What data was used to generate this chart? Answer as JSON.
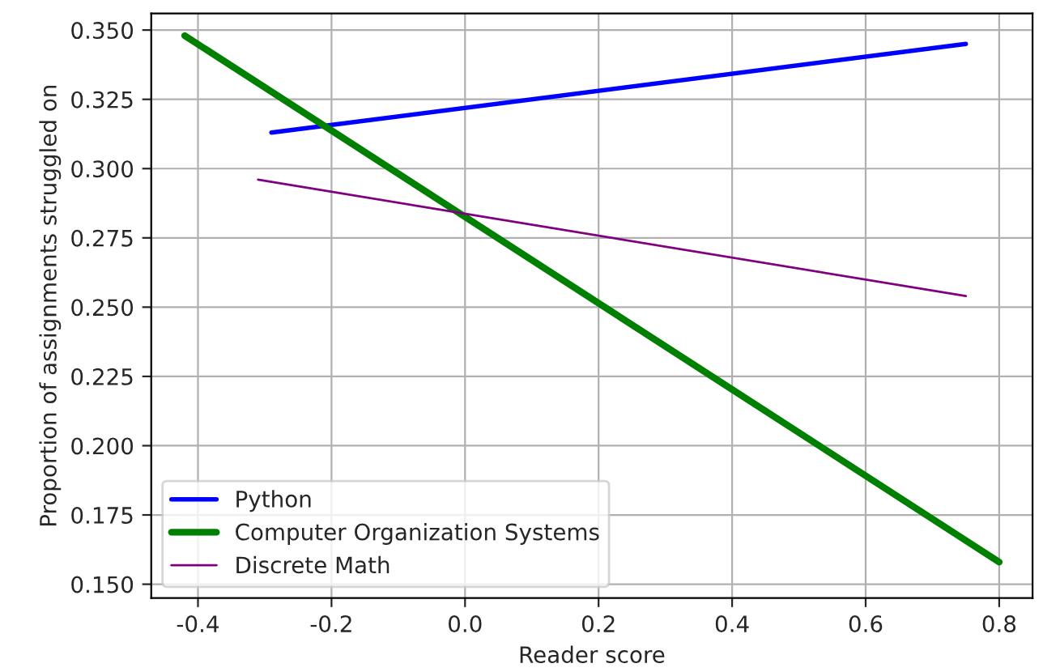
{
  "chart_data": {
    "type": "line",
    "xlabel": "Reader score",
    "ylabel": "Proportion of assignments struggled on",
    "series": [
      {
        "name": "Python",
        "color": "#0000ff",
        "x": [
          -0.29,
          0.75
        ],
        "values": [
          0.313,
          0.345
        ]
      },
      {
        "name": "Computer Organization Systems",
        "color": "#008000",
        "x": [
          -0.42,
          0.8
        ],
        "values": [
          0.348,
          0.158
        ]
      },
      {
        "name": "Discrete Math",
        "color": "#800080",
        "x": [
          -0.31,
          0.75
        ],
        "values": [
          0.296,
          0.254
        ]
      }
    ],
    "xlim": [
      -0.47,
      0.85
    ],
    "ylim": [
      0.145,
      0.356
    ],
    "xticks": [
      -0.4,
      -0.2,
      {
        "value": 0,
        "label": "0.0"
      },
      0.2,
      0.4,
      0.6,
      0.8
    ],
    "yticks": [
      {
        "value": 0.15,
        "label": "0.150"
      },
      {
        "value": 0.175,
        "label": "0.175"
      },
      {
        "value": 0.2,
        "label": "0.200"
      },
      {
        "value": 0.225,
        "label": "0.225"
      },
      {
        "value": 0.25,
        "label": "0.250"
      },
      {
        "value": 0.275,
        "label": "0.275"
      },
      {
        "value": 0.3,
        "label": "0.300"
      },
      {
        "value": 0.325,
        "label": "0.325"
      },
      {
        "value": 0.35,
        "label": "0.350"
      }
    ],
    "grid": true,
    "legend": "bottom left",
    "marker": "none",
    "line_style": "solid"
  }
}
